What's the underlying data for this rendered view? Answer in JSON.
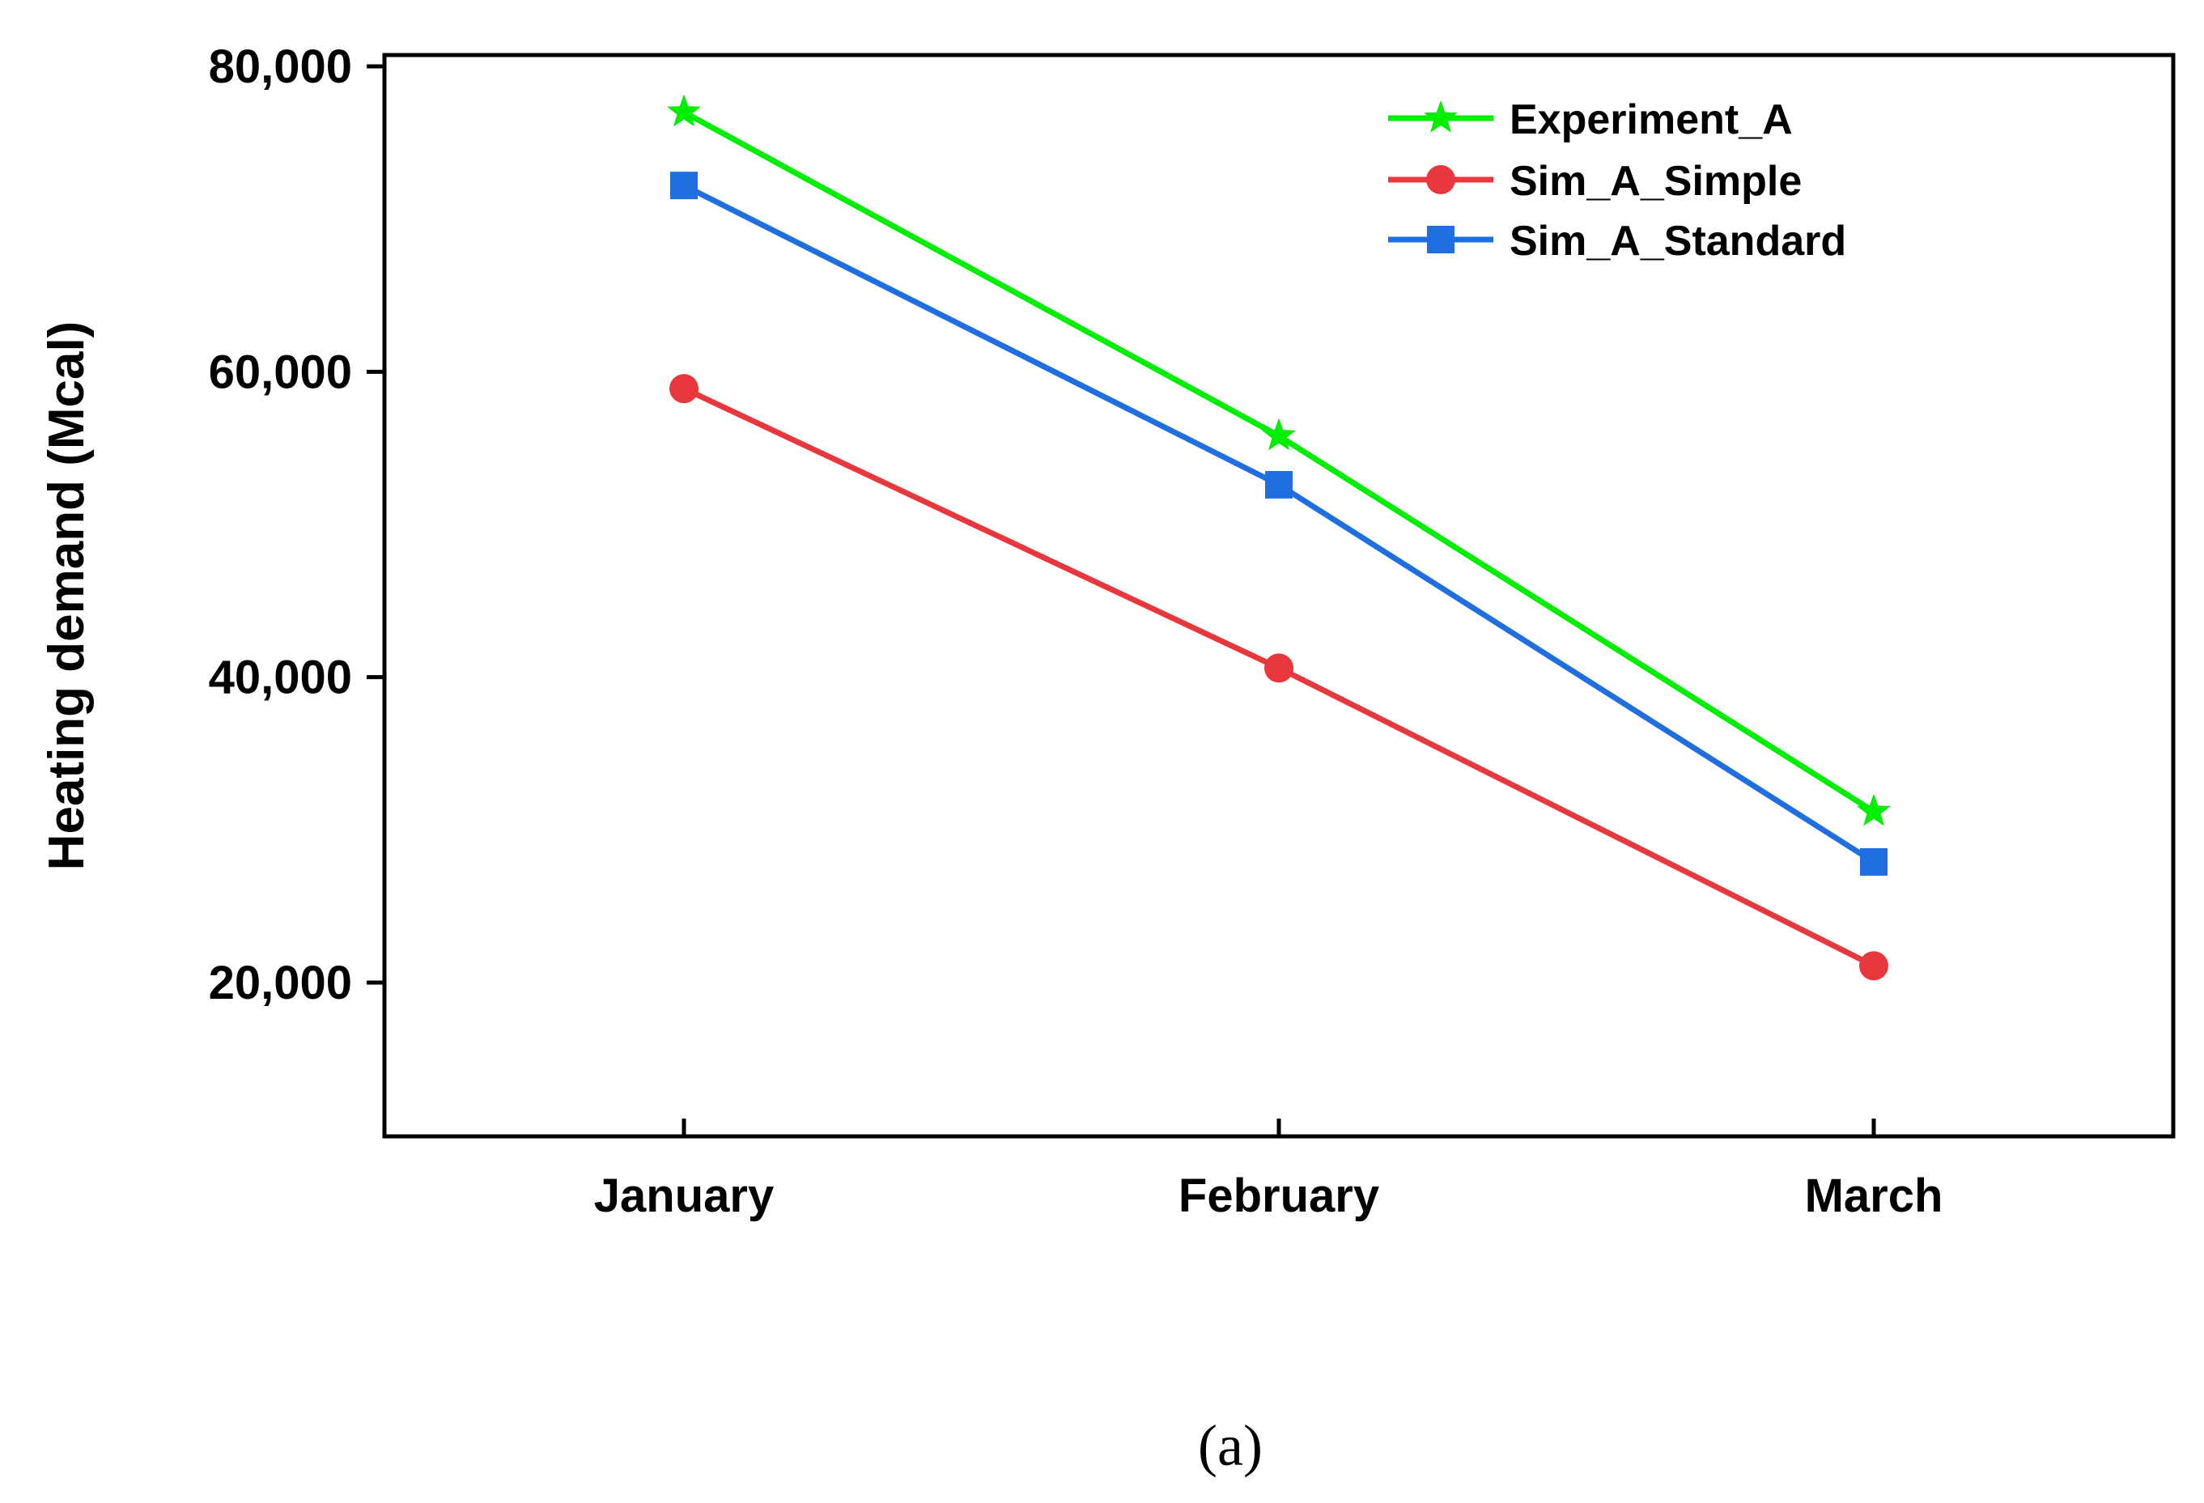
{
  "chart_data": {
    "type": "line",
    "title": "",
    "xlabel": "",
    "ylabel": "Heating demand (Mcal)",
    "categories": [
      "January",
      "February",
      "March"
    ],
    "ylim": [
      10000,
      80000
    ],
    "yticks": [
      20000,
      40000,
      60000,
      80000
    ],
    "ytick_labels": [
      "20,000",
      "40,000",
      "60,000",
      "80,000"
    ],
    "legend_position": "top-right",
    "caption": "(a)",
    "series": [
      {
        "name": "Experiment_A",
        "color": "#00ee00",
        "marker": "star",
        "values": [
          77000,
          55800,
          31200
        ]
      },
      {
        "name": "Sim_A_Simple",
        "color": "#e8383d",
        "marker": "circle",
        "values": [
          58900,
          40600,
          21100
        ]
      },
      {
        "name": "Sim_A_Standard",
        "color": "#1f6fe0",
        "marker": "square",
        "values": [
          72200,
          52600,
          27900
        ]
      }
    ]
  }
}
